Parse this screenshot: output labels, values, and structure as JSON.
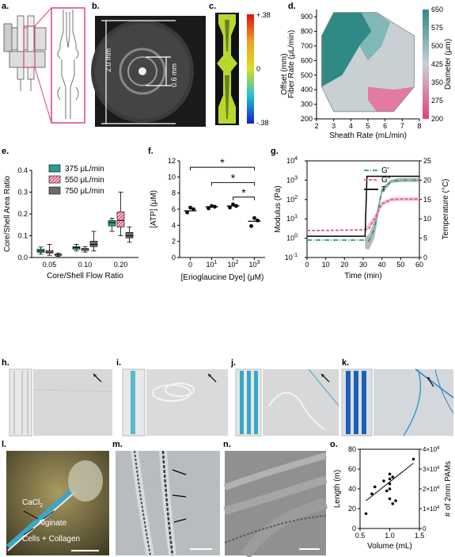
{
  "panels": {
    "a": {
      "label": "a."
    },
    "b": {
      "label": "b.",
      "dim_outer": "2.0 mm",
      "dim_inner": "0.6 mm"
    },
    "c": {
      "label": "c.",
      "colorbar_ticks": [
        "+.38",
        "0",
        "-.38"
      ],
      "colorbar_label": "Offset (mm)"
    },
    "d": {
      "label": "d."
    },
    "e": {
      "label": "e."
    },
    "f": {
      "label": "f.",
      "sig_marks": [
        "*",
        "*",
        "*"
      ]
    },
    "g": {
      "label": "g."
    },
    "h": {
      "label": "h."
    },
    "i": {
      "label": "i."
    },
    "j": {
      "label": "j."
    },
    "k": {
      "label": "k."
    },
    "l": {
      "label": "l.",
      "annotations": [
        "CaCl",
        "Alginate",
        "Cells + Collagen"
      ],
      "cacl_sub": "2"
    },
    "m": {
      "label": "m."
    },
    "n": {
      "label": "n."
    },
    "o": {
      "label": "o."
    }
  },
  "colors": {
    "teal": "#2a9d8f",
    "pink": "#e05a8a",
    "gray": "#6b6b6b",
    "magenta": "#d9418c"
  },
  "chart_data": [
    {
      "id": "d",
      "type": "heatmap",
      "xlabel": "Sheath Rate (mL/min)",
      "ylabel": "Fiber Rate (μL/min)",
      "xlim": [
        2,
        8
      ],
      "ylim": [
        200,
        950
      ],
      "xticks": [
        "2",
        "3",
        "4",
        "5",
        "6",
        "7",
        "8"
      ],
      "yticks": [
        "200",
        "300",
        "400",
        "500",
        "600",
        "700",
        "800",
        "900"
      ],
      "colorbar_label": "Diameter (μm)",
      "colorbar_ticks": [
        "650",
        "575",
        "500",
        "425",
        "350",
        "275",
        "200"
      ],
      "colorbar_range": [
        200,
        650
      ]
    },
    {
      "id": "e",
      "type": "bar",
      "xlabel": "Core/Shell Flow Ratio",
      "ylabel": "Core/Shell Area Ratio",
      "categories": [
        "0.05",
        "0.10",
        "0.20"
      ],
      "ylim": [
        0,
        0.4
      ],
      "yticks": [
        "0.0",
        "0.1",
        "0.2",
        "0.3",
        "0.4"
      ],
      "series": [
        {
          "name": "375 μL/min",
          "boxes": [
            [
              0.015,
              0.024,
              0.03,
              0.038,
              0.048
            ],
            [
              0.03,
              0.038,
              0.045,
              0.05,
              0.06
            ],
            [
              0.12,
              0.145,
              0.16,
              0.17,
              0.18
            ]
          ]
        },
        {
          "name": "550 μL/min",
          "boxes": [
            [
              0.01,
              0.02,
              0.025,
              0.032,
              0.06
            ],
            [
              0.025,
              0.032,
              0.037,
              0.042,
              0.05
            ],
            [
              0.1,
              0.14,
              0.17,
              0.21,
              0.3
            ]
          ]
        },
        {
          "name": "750 μL/min",
          "boxes": [
            [
              0.005,
              0.01,
              0.012,
              0.015,
              0.02
            ],
            [
              0.03,
              0.05,
              0.06,
              0.075,
              0.12
            ],
            [
              0.07,
              0.09,
              0.1,
              0.115,
              0.14
            ]
          ]
        }
      ]
    },
    {
      "id": "f",
      "type": "scatter",
      "xlabel": "[Erioglaucine Dye] (μM)",
      "ylabel": "[ATP] (μM)",
      "categories": [
        "0",
        "10",
        "10",
        "10"
      ],
      "tick_exponents": [
        "",
        "1",
        "2",
        "3"
      ],
      "ylim": [
        0,
        12
      ],
      "yticks": [
        "0",
        "2",
        "4",
        "6",
        "8",
        "10",
        "12"
      ],
      "points": [
        [
          5.6,
          6.0,
          6.2
        ],
        [
          6.1,
          6.3,
          6.4
        ],
        [
          6.2,
          6.4,
          6.6
        ],
        [
          3.9,
          4.6,
          4.9
        ]
      ],
      "means": [
        5.8,
        6.3,
        6.4,
        4.5
      ]
    },
    {
      "id": "g",
      "type": "line",
      "xlabel": "Time (min)",
      "ylabel": "Modulus (Pa)",
      "y2label": "Temperature (°C)",
      "xlim": [
        0,
        60
      ],
      "xticks": [
        "0",
        "10",
        "20",
        "30",
        "40",
        "50",
        "60"
      ],
      "ytick_exponents": [
        "4",
        "3",
        "2",
        "1",
        "0",
        "-1"
      ],
      "y2ticks": [
        "25",
        "20",
        "15",
        "10",
        "5",
        "0"
      ],
      "ylim_log": [
        -1,
        4
      ],
      "y2lim": [
        0,
        25
      ],
      "series": [
        {
          "name": "G'",
          "color": "#2a9d8f",
          "x": [
            0,
            10,
            20,
            30,
            33,
            36,
            40,
            45,
            50,
            60
          ],
          "y": [
            0.8,
            0.8,
            0.8,
            0.8,
            0.7,
            3,
            300,
            900,
            1000,
            1000
          ]
        },
        {
          "name": "G\"",
          "color": "#e05a8a",
          "x": [
            0,
            10,
            20,
            30,
            33,
            36,
            40,
            45,
            50,
            60
          ],
          "y": [
            2.5,
            2.5,
            2.6,
            2.7,
            3,
            10,
            60,
            100,
            105,
            105
          ]
        },
        {
          "name": "T",
          "color": "#000000",
          "x": [
            0,
            31,
            32,
            60
          ],
          "y": [
            5.5,
            5.5,
            21,
            21
          ]
        }
      ]
    },
    {
      "id": "o",
      "type": "scatter",
      "xlabel": "Volume (mL)",
      "ylabel": "Length (m)",
      "y2label": "# of 2mm PAMs",
      "xlim": [
        0.5,
        1.5
      ],
      "xticks": [
        "0.5",
        "1.0",
        "1.5"
      ],
      "ylim": [
        0,
        80
      ],
      "yticks": [
        "0",
        "20",
        "40",
        "60",
        "80"
      ],
      "y2ticks": [
        "0",
        "1",
        "2",
        "3",
        "4"
      ],
      "y2_unit": "10",
      "y2_exp": "4",
      "x": [
        0.6,
        0.7,
        0.75,
        0.9,
        0.95,
        1.0,
        1.0,
        1.0,
        1.0,
        1.0,
        1.05,
        1.05,
        1.1,
        1.4
      ],
      "y": [
        15,
        35,
        42,
        48,
        38,
        55,
        50,
        45,
        40,
        30,
        52,
        25,
        28,
        70
      ],
      "fit": [
        [
          0.6,
          28
        ],
        [
          1.4,
          66
        ]
      ]
    }
  ]
}
